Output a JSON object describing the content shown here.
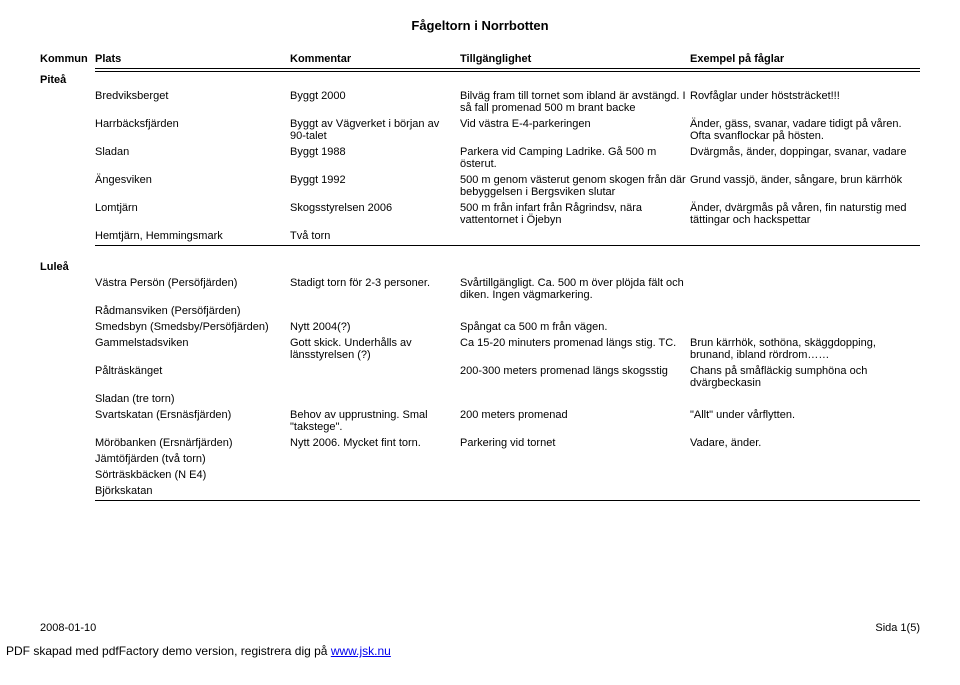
{
  "title": "Fågeltorn i Norrbotten",
  "headers": {
    "kommun": "Kommun",
    "plats": "Plats",
    "kommentar": "Kommentar",
    "till": "Tillgänglighet",
    "exempel": "Exempel på fåglar"
  },
  "groups": [
    {
      "name": "Piteå",
      "rows": [
        {
          "plats": "Bredviksberget",
          "kommentar": "Byggt 2000",
          "till": "Bilväg fram till tornet som ibland är avstängd. I så fall promenad 500 m brant backe",
          "exempel": "Rovfåglar under höststräcket!!!"
        },
        {
          "plats": "Harrbäcksfjärden",
          "kommentar": "Byggt av Vägverket i början av 90-talet",
          "till": "Vid västra E-4-parkeringen",
          "exempel": "Änder, gäss, svanar, vadare tidigt på våren. Ofta svanflockar på hösten."
        },
        {
          "plats": "Sladan",
          "kommentar": "Byggt 1988",
          "till": "Parkera vid Camping Ladrike. Gå 500 m österut.",
          "exempel": "Dvärgmås, änder, doppingar, svanar, vadare"
        },
        {
          "plats": "Ängesviken",
          "kommentar": "Byggt 1992",
          "till": "500 m genom västerut genom skogen från där bebyggelsen i Bergsviken slutar",
          "exempel": "Grund vassjö, änder, sångare, brun kärrhök"
        },
        {
          "plats": "Lomtjärn",
          "kommentar": "Skogsstyrelsen 2006",
          "till": "500 m från infart från Rågrindsv, nära vattentornet i Öjebyn",
          "exempel": "Änder, dvärgmås på våren, fin naturstig med tättingar och hackspettar"
        },
        {
          "plats": "Hemtjärn, Hemmingsmark",
          "kommentar": "Två torn",
          "till": "",
          "exempel": ""
        }
      ]
    },
    {
      "name": "Luleå",
      "rows": [
        {
          "plats": "Västra Persön (Persöfjärden)",
          "kommentar": "Stadigt torn för 2-3 personer.",
          "till": "Svårtillgängligt. Ca. 500 m över plöjda fält och diken. Ingen vägmarkering.",
          "exempel": ""
        },
        {
          "plats": "Rådmansviken (Persöfjärden)",
          "kommentar": "",
          "till": "",
          "exempel": ""
        },
        {
          "plats": "Smedsbyn (Smedsby/Persöfjärden)",
          "kommentar": "Nytt 2004(?)",
          "till": "Spångat ca 500 m från vägen.",
          "exempel": ""
        },
        {
          "plats": "Gammelstadsviken",
          "kommentar": "Gott skick. Underhålls av länsstyrelsen (?)",
          "till": "Ca 15-20 minuters promenad längs stig. TC.",
          "exempel": "Brun kärrhök, sothöna, skäggdopping, brunand, ibland rördrom……"
        },
        {
          "plats": "Pålträskänget",
          "kommentar": "",
          "till": "200-300 meters promenad längs skogsstig",
          "exempel": "Chans på småfläckig sumphöna och dvärgbeckasin"
        },
        {
          "plats": "Sladan (tre torn)",
          "kommentar": "",
          "till": "",
          "exempel": ""
        },
        {
          "plats": "Svartskatan (Ersnäsfjärden)",
          "kommentar": "Behov av upprustning. Smal \"takstege\".",
          "till": "200 meters promenad",
          "exempel": "\"Allt\" under vårflytten."
        },
        {
          "plats": "Möröbanken (Ersnärfjärden)",
          "kommentar": "Nytt 2006. Mycket fint torn.",
          "till": "Parkering vid tornet",
          "exempel": "Vadare, änder."
        },
        {
          "plats": "Jämtöfjärden (två torn)",
          "kommentar": "",
          "till": "",
          "exempel": ""
        },
        {
          "plats": "Sörträskbäcken (N E4)",
          "kommentar": "",
          "till": "",
          "exempel": ""
        },
        {
          "plats": "Björkskatan",
          "kommentar": "",
          "till": "",
          "exempel": ""
        }
      ]
    }
  ],
  "footer": {
    "date": "2008-01-10",
    "page": "Sida 1(5)"
  },
  "pdf_note": {
    "prefix": "PDF skapad med pdfFactory demo version, registrera dig på ",
    "link_text": "www.jsk.nu"
  }
}
